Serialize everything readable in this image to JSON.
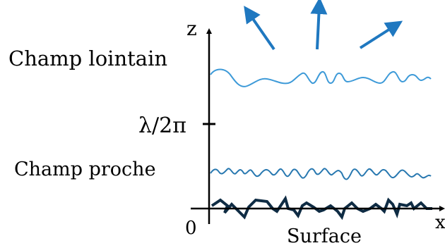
{
  "labels": {
    "far_field": "Champ lointain",
    "near_field": "Champ proche",
    "lambda_tick": "λ/2π",
    "z_axis": "z",
    "x_axis": "x",
    "origin": "0",
    "surface": "Surface"
  },
  "colors": {
    "axis": "#000000",
    "far_field_wave": "#3d9ad8",
    "near_field_wave": "#2878b0",
    "surface_line": "#0f2c44",
    "arrows": "#1f78c0"
  }
}
